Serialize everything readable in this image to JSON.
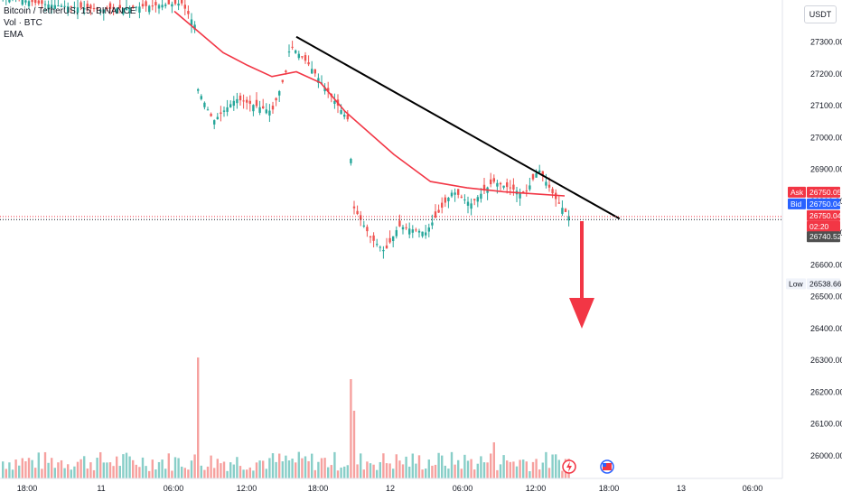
{
  "legend": {
    "symbol": "Bitcoin / TetherUS, 15, BINANCE",
    "volume": "Vol · BTC",
    "ema": "EMA"
  },
  "currency": "USDT",
  "chart_data": {
    "type": "line",
    "title": "Bitcoin / TetherUS, 15, BINANCE",
    "y_axis": {
      "ticks": [
        "27300.00",
        "27200.00",
        "27100.00",
        "27000.00",
        "26900.00",
        "26800.00",
        "26700.00",
        "26600.00",
        "26500.00",
        "26400.00",
        "26300.00",
        "26200.00",
        "26100.00",
        "26000.00"
      ],
      "range": [
        25950,
        27400
      ]
    },
    "x_axis": {
      "ticks": [
        "18:00",
        "11",
        "06:00",
        "12:00",
        "18:00",
        "12",
        "06:00",
        "12:00",
        "18:00",
        "13",
        "06:00"
      ]
    },
    "series": [
      {
        "name": "EMA",
        "color": "#f23645",
        "x": [
          "11 06:00",
          "11 08:00",
          "11 10:00",
          "11 12:00",
          "11 14:00",
          "11 16:00",
          "11 18:00",
          "11 20:00",
          "12 00:00",
          "12 03:00",
          "12 06:00",
          "12 09:00",
          "12 12:00",
          "12 14:00"
        ],
        "values": [
          27395,
          27330,
          27265,
          27225,
          27190,
          27205,
          27170,
          27080,
          26945,
          26860,
          26840,
          26828,
          26820,
          26815
        ]
      },
      {
        "name": "Trendline",
        "color": "#000000",
        "x": [
          "11 16:00",
          "12 18:30"
        ],
        "values": [
          27315,
          26743
        ]
      }
    ],
    "price_labels": {
      "ask_label": "Ask",
      "ask": "26750.05",
      "bid_label": "Bid",
      "bid": "26750.04",
      "last": "26750.04",
      "countdown": "02:20",
      "prev": "26740.52",
      "low_label": "Low",
      "low": "26538.66"
    },
    "annotation": "Red arrow pointing down",
    "volume_series": "Vol · BTC",
    "grid": false
  },
  "colors": {
    "up": "#26a69a",
    "down": "#ef5350",
    "ema": "#f23645",
    "ask": "#f23645",
    "bid": "#2962ff",
    "arrow": "#f23645"
  }
}
